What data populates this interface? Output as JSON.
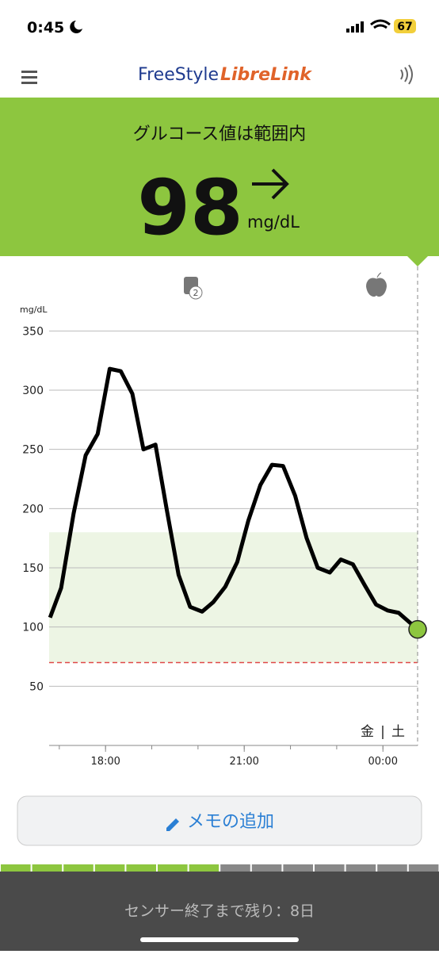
{
  "status_bar": {
    "time": "0:45",
    "battery": "67"
  },
  "header": {
    "brand": "FreeStyle",
    "product": "LibreLink"
  },
  "status": {
    "message": "グルコース値は範囲内",
    "value": "98",
    "unit": "mg/dL"
  },
  "notes_count": "2",
  "chart_data": {
    "type": "line",
    "y_label": "mg/dL",
    "x": [
      16.8,
      17.04,
      17.31,
      17.57,
      17.83,
      18.09,
      18.33,
      18.58,
      18.82,
      19.08,
      19.32,
      19.58,
      19.83,
      20.09,
      20.33,
      20.59,
      20.85,
      21.09,
      21.35,
      21.6,
      21.84,
      22.1,
      22.35,
      22.59,
      22.85,
      23.09,
      23.35,
      23.61,
      23.85,
      24.1,
      24.34,
      24.75
    ],
    "values": [
      108,
      133,
      196,
      245,
      263,
      318,
      316,
      297,
      250,
      254,
      200,
      144,
      117,
      113,
      121,
      134,
      155,
      190,
      220,
      237,
      236,
      211,
      175,
      150,
      146,
      157,
      153,
      135,
      119,
      114,
      112,
      98
    ],
    "color": "#000000",
    "current_color": "#8dc63f",
    "xlim": [
      16.78,
      24.75
    ],
    "ylim": [
      0,
      375
    ],
    "yticks": [
      50,
      100,
      150,
      200,
      250,
      300,
      350
    ],
    "xticks": [
      {
        "value": 18,
        "label": "18:00"
      },
      {
        "value": 21,
        "label": "21:00"
      },
      {
        "value": 24,
        "label": "00:00"
      }
    ],
    "x_minor_ticks": [
      17,
      18,
      19,
      20,
      21,
      22,
      23,
      24
    ],
    "target_range": [
      70,
      180
    ],
    "low_line": 70,
    "grid": true,
    "day_labels": [
      "金",
      "土"
    ],
    "day_separator": "|"
  },
  "add_note": "メモの追加",
  "sensor_remaining": "センサー終了まで残り：8日"
}
